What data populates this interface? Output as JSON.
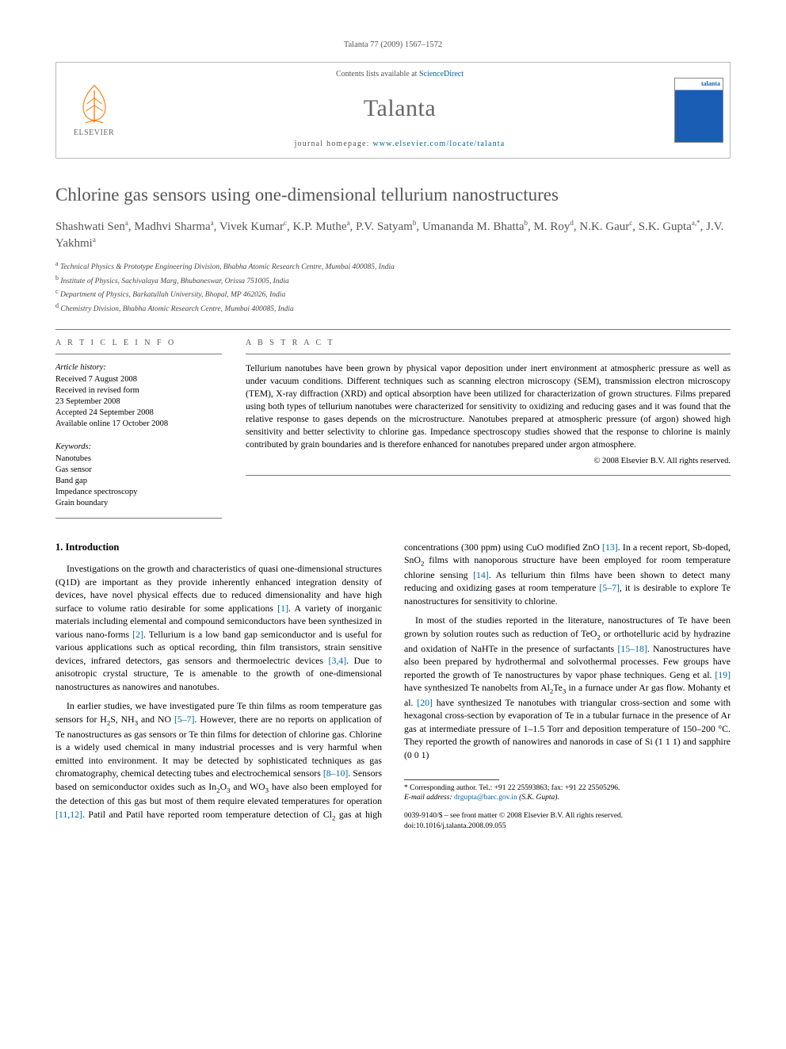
{
  "running_head": "Talanta 77 (2009) 1567–1572",
  "header": {
    "publisher": "ELSEVIER",
    "contents_prefix": "Contents lists available at ",
    "contents_link": "ScienceDirect",
    "journal": "Talanta",
    "homepage_prefix": "journal homepage: ",
    "homepage_link": "www.elsevier.com/locate/talanta",
    "cover_label": "talanta"
  },
  "title": "Chlorine gas sensors using one-dimensional tellurium nanostructures",
  "authors_html": "Shashwati Sen<sup>a</sup>, Madhvi Sharma<sup>a</sup>, Vivek Kumar<sup>c</sup>, K.P. Muthe<sup>a</sup>, P.V. Satyam<sup>b</sup>, Umananda M. Bhatta<sup>b</sup>, M. Roy<sup>d</sup>, N.K. Gaur<sup>c</sup>, S.K. Gupta<sup>a,*</sup>, J.V. Yakhmi<sup>a</sup>",
  "affiliations": [
    {
      "sup": "a",
      "text": "Technical Physics & Prototype Engineering Division, Bhabha Atomic Research Centre, Mumbai 400085, India"
    },
    {
      "sup": "b",
      "text": "Institute of Physics, Sachivalaya Marg, Bhubaneswar, Orissa 751005, India"
    },
    {
      "sup": "c",
      "text": "Department of Physics, Barkatullah University, Bhopal, MP 462026, India"
    },
    {
      "sup": "d",
      "text": "Chemistry Division, Bhabha Atomic Research Centre, Mumbai 400085, India"
    }
  ],
  "info": {
    "head": "A R T I C L E   I N F O",
    "history_head": "Article history:",
    "history": [
      "Received 7 August 2008",
      "Received in revised form",
      "23 September 2008",
      "Accepted 24 September 2008",
      "Available online 17 October 2008"
    ],
    "keywords_head": "Keywords:",
    "keywords": [
      "Nanotubes",
      "Gas sensor",
      "Band gap",
      "Impedance spectroscopy",
      "Grain boundary"
    ]
  },
  "abstract": {
    "head": "A B S T R A C T",
    "text": "Tellurium nanotubes have been grown by physical vapor deposition under inert environment at atmospheric pressure as well as under vacuum conditions. Different techniques such as scanning electron microscopy (SEM), transmission electron microscopy (TEM), X-ray diffraction (XRD) and optical absorption have been utilized for characterization of grown structures. Films prepared using both types of tellurium nanotubes were characterized for sensitivity to oxidizing and reducing gases and it was found that the relative response to gases depends on the microstructure. Nanotubes prepared at atmospheric pressure (of argon) showed high sensitivity and better selectivity to chlorine gas. Impedance spectroscopy studies showed that the response to chlorine is mainly contributed by grain boundaries and is therefore enhanced for nanotubes prepared under argon atmosphere.",
    "copyright": "© 2008 Elsevier B.V. All rights reserved."
  },
  "section_heading": "1. Introduction",
  "paragraphs": [
    "Investigations on the growth and characteristics of quasi one-dimensional structures (Q1D) are important as they provide inherently enhanced integration density of devices, have novel physical effects due to reduced dimensionality and have high surface to volume ratio desirable for some applications <span class=\"ref\">[1]</span>. A variety of inorganic materials including elemental and compound semiconductors have been synthesized in various nano-forms <span class=\"ref\">[2]</span>. Tellurium is a low band gap semiconductor and is useful for various applications such as optical recording, thin film transistors, strain sensitive devices, infrared detectors, gas sensors and thermoelectric devices <span class=\"ref\">[3,4]</span>. Due to anisotropic crystal structure, Te is amenable to the growth of one-dimensional nanostructures as nanowires and nanotubes.",
    "In earlier studies, we have investigated pure Te thin films as room temperature gas sensors for H<sub>2</sub>S, NH<sub>3</sub> and NO <span class=\"ref\">[5–7]</span>. However, there are no reports on application of Te nanostructures as gas sensors or Te thin films for detection of chlorine gas. Chlorine is a widely used chemical in many industrial processes and is very harmful when emitted into environment. It may be detected by sophisticated techniques as gas chromatography, chemical detecting tubes and electrochemical sensors <span class=\"ref\">[8–10]</span>. Sensors based on semiconductor oxides such as In<sub>2</sub>O<sub>3</sub> and WO<sub>3</sub> have also been employed for the detection of this gas but most of them require elevated temperatures for operation <span class=\"ref\">[11,12]</span>. Patil and Patil have reported room temperature detection of Cl<sub>2</sub> gas at high concentrations (300 ppm) using CuO modified ZnO <span class=\"ref\">[13]</span>. In a recent report, Sb-doped, SnO<sub>2</sub> films with nanoporous structure have been employed for room temperature chlorine sensing <span class=\"ref\">[14]</span>. As tellurium thin films have been shown to detect many reducing and oxidizing gases at room temperature <span class=\"ref\">[5–7]</span>, it is desirable to explore Te nanostructures for sensitivity to chlorine.",
    "In most of the studies reported in the literature, nanostructures of Te have been grown by solution routes such as reduction of TeO<sub>2</sub> or orthotelluric acid by hydrazine and oxidation of NaHTe in the presence of surfactants <span class=\"ref\">[15–18]</span>. Nanostructures have also been prepared by hydrothermal and solvothermal processes. Few groups have reported the growth of Te nanostructures by vapor phase techniques. Geng et al. <span class=\"ref\">[19]</span> have synthesized Te nanobelts from Al<sub>2</sub>Te<sub>3</sub> in a furnace under Ar gas flow. Mohanty et al. <span class=\"ref\">[20]</span> have synthesized Te nanotubes with triangular cross-section and some with hexagonal cross-section by evaporation of Te in a tubular furnace in the presence of Ar gas at intermediate pressure of 1–1.5 Torr and deposition temperature of 150–200 °C. They reported the growth of nanowires and nanorods in case of Si (1 1 1) and sapphire (0 0 1)"
  ],
  "footer": {
    "corr": "* Corresponding author. Tel.: +91 22 25593863; fax: +91 22 25505296.",
    "email_label": "E-mail address:",
    "email": "drgupta@barc.gov.in",
    "email_owner": "(S.K. Gupta).",
    "issn_line": "0039-9140/$ – see front matter © 2008 Elsevier B.V. All rights reserved.",
    "doi": "doi:10.1016/j.talanta.2008.09.055"
  },
  "logo_colors": {
    "orange": "#ff7a00",
    "gray": "#888"
  }
}
